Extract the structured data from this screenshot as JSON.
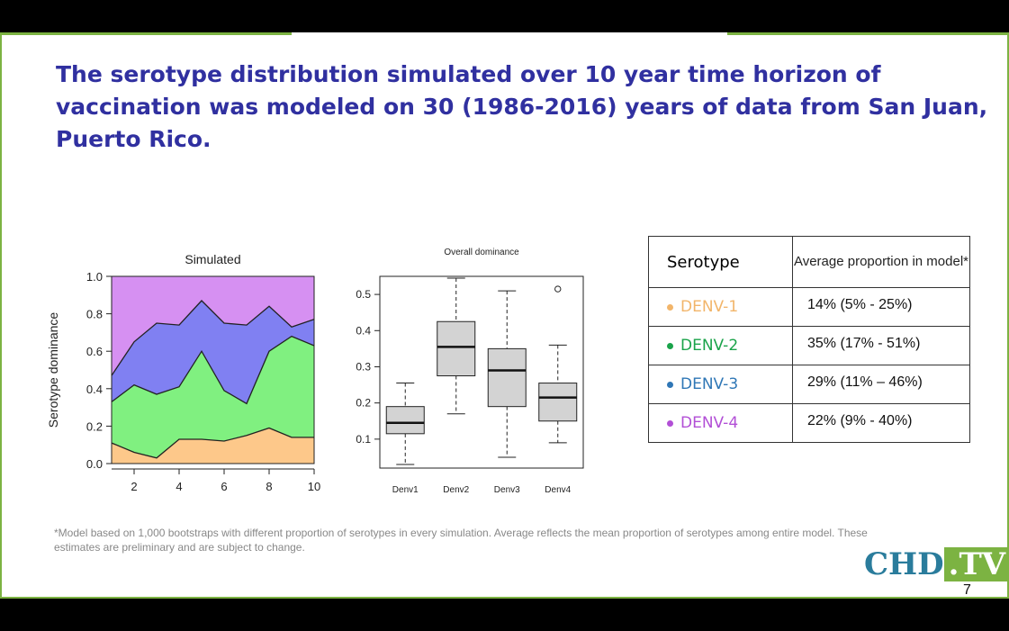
{
  "slide": {
    "title": "The serotype distribution simulated over 10 year time horizon of vaccination was modeled on 30 (1986-2016) years of data from San Juan, Puerto Rico.",
    "footnote": "*Model based on 1,000 bootstraps with different proportion of serotypes in every simulation. Average reflects the mean proportion of serotypes among entire model. These estimates are preliminary and are subject to change.",
    "page_number": "7",
    "logo": {
      "left": "CHD",
      "right": ".TV"
    },
    "colors": {
      "title": "#3030a0",
      "border": "#7cb342",
      "logo_blue": "#2a7c9c",
      "logo_green": "#7cb342"
    }
  },
  "table": {
    "headers": [
      "Serotype",
      "Average proportion in model*"
    ],
    "rows": [
      {
        "serotype": "DENV-1",
        "average": "14% (5% - 25%)",
        "color": "#f2b56a"
      },
      {
        "serotype": "DENV-2",
        "average": "35% (17% - 51%)",
        "color": "#1aa34a"
      },
      {
        "serotype": "DENV-3",
        "average": "29% (11% – 46%)",
        "color": "#2f77b6"
      },
      {
        "serotype": "DENV-4",
        "average": "22% (9% - 40%)",
        "color": "#b24fd6"
      }
    ]
  },
  "chart_data": [
    {
      "type": "area",
      "stacked": true,
      "title": "Simulated",
      "ylabel": "Serotype dominance",
      "xlabel": "",
      "x": [
        1,
        2,
        3,
        4,
        5,
        6,
        7,
        8,
        9,
        10
      ],
      "xlim": [
        1,
        10
      ],
      "ylim": [
        0,
        1
      ],
      "xticks": [
        "2",
        "4",
        "6",
        "8",
        "10"
      ],
      "yticks": [
        "0.0",
        "0.2",
        "0.4",
        "0.6",
        "0.8",
        "1.0"
      ],
      "series": [
        {
          "values": [
            0.11,
            0.06,
            0.03,
            0.13,
            0.13,
            0.12,
            0.15,
            0.19,
            0.14,
            0.14
          ],
          "color": "#fdc88a"
        },
        {
          "values": [
            0.22,
            0.36,
            0.34,
            0.28,
            0.47,
            0.27,
            0.17,
            0.41,
            0.54,
            0.49
          ],
          "color": "#80f080"
        },
        {
          "values": [
            0.14,
            0.23,
            0.38,
            0.33,
            0.27,
            0.36,
            0.42,
            0.24,
            0.05,
            0.14
          ],
          "color": "#8080f2"
        },
        {
          "values": [
            0.53,
            0.35,
            0.25,
            0.26,
            0.13,
            0.25,
            0.26,
            0.16,
            0.27,
            0.23
          ],
          "color": "#d690f2"
        }
      ],
      "grid": false,
      "legend": "none"
    },
    {
      "type": "box",
      "title": "Overall dominance",
      "xlabel": "",
      "ylabel": "",
      "categories": [
        "Denv1",
        "Denv2",
        "Denv3",
        "Denv4"
      ],
      "ylim": [
        0.02,
        0.55
      ],
      "yticks": [
        "0.1",
        "0.2",
        "0.3",
        "0.4",
        "0.5"
      ],
      "boxes": [
        {
          "min": 0.03,
          "q1": 0.115,
          "median": 0.145,
          "q3": 0.19,
          "max": 0.255,
          "outliers": []
        },
        {
          "min": 0.17,
          "q1": 0.275,
          "median": 0.355,
          "q3": 0.425,
          "max": 0.545,
          "outliers": []
        },
        {
          "min": 0.05,
          "q1": 0.19,
          "median": 0.29,
          "q3": 0.35,
          "max": 0.51,
          "outliers": []
        },
        {
          "min": 0.09,
          "q1": 0.15,
          "median": 0.215,
          "q3": 0.255,
          "max": 0.36,
          "outliers": [
            0.515
          ]
        }
      ],
      "box_color": "#d3d3d3",
      "grid": false
    }
  ]
}
